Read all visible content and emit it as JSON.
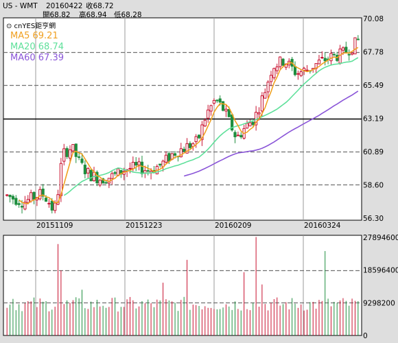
{
  "header": {
    "symbol": "US - WMT",
    "date": "20160422",
    "close_label": "收68.72",
    "open_label": "開68.82",
    "high_label": "高68.94",
    "low_label": "低68.28"
  },
  "legend": {
    "brand": "⊙ cnYES鉅亨網",
    "ma5": "MA5 69.21",
    "ma20": "MA20 68.74",
    "ma60": "MA60 67.39"
  },
  "colors": {
    "up": "#c8102e",
    "down": "#1e8e3e",
    "ma5": "#f0a020",
    "ma20": "#5ee09a",
    "ma60": "#8a55d8",
    "panel_bg": "#ffffff",
    "page_bg": "#dedede"
  },
  "chart_data": [
    {
      "type": "candlestick",
      "title": "",
      "x_labels": [
        "20151109",
        "20151223",
        "20160209",
        "20160324"
      ],
      "y_ticks": [
        "70.08",
        "67.78",
        "65.49",
        "63.19",
        "60.89",
        "58.60",
        "56.30"
      ],
      "ylim": [
        56.3,
        70.08
      ],
      "reference_line": 63.19,
      "bar_count": 118,
      "grid": true,
      "series": [
        {
          "name": "MA5",
          "last": 69.21
        },
        {
          "name": "MA20",
          "last": 68.74
        },
        {
          "name": "MA60",
          "last": 67.39
        }
      ]
    },
    {
      "type": "bar",
      "title": "",
      "y_ticks": [
        "27894600",
        "18596400",
        "9298200",
        "0"
      ],
      "ylim": [
        0,
        27894600
      ],
      "grid": true
    }
  ]
}
